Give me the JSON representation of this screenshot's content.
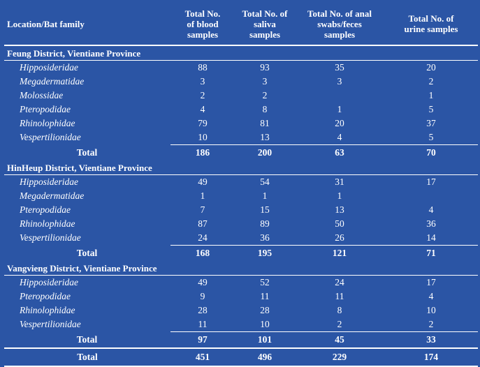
{
  "headers": {
    "location": "Location/Bat family",
    "blood": [
      "Total No.",
      "of blood",
      "samples"
    ],
    "saliva": [
      "Total No. of",
      "saliva",
      "samples"
    ],
    "anal": [
      "Total No. of anal",
      "swabs/feces",
      "samples"
    ],
    "urine": [
      "Total No. of",
      "urine samples"
    ]
  },
  "sections": [
    {
      "title": "Feung District, Vientiane Province",
      "rows": [
        {
          "family": "Hipposideridae",
          "blood": "88",
          "saliva": "93",
          "anal": "35",
          "urine": "20"
        },
        {
          "family": "Megadermatidae",
          "blood": "3",
          "saliva": "3",
          "anal": "3",
          "urine": "2"
        },
        {
          "family": "Molossidae",
          "blood": "2",
          "saliva": "2",
          "anal": "",
          "urine": "1"
        },
        {
          "family": "Pteropodidae",
          "blood": "4",
          "saliva": "8",
          "anal": "1",
          "urine": "5"
        },
        {
          "family": "Rhinolophidae",
          "blood": "79",
          "saliva": "81",
          "anal": "20",
          "urine": "37"
        },
        {
          "family": "Vespertilionidae",
          "blood": "10",
          "saliva": "13",
          "anal": "4",
          "urine": "5"
        }
      ],
      "total": {
        "label": "Total",
        "blood": "186",
        "saliva": "200",
        "anal": "63",
        "urine": "70"
      }
    },
    {
      "title": "HinHeup District, Vientiane Province",
      "rows": [
        {
          "family": "Hipposideridae",
          "blood": "49",
          "saliva": "54",
          "anal": "31",
          "urine": "17"
        },
        {
          "family": "Megadermatidae",
          "blood": "1",
          "saliva": "1",
          "anal": "1",
          "urine": ""
        },
        {
          "family": "Pteropodidae",
          "blood": "7",
          "saliva": "15",
          "anal": "13",
          "urine": "4"
        },
        {
          "family": "Rhinolophidae",
          "blood": "87",
          "saliva": "89",
          "anal": "50",
          "urine": "36"
        },
        {
          "family": "Vespertilionidae",
          "blood": "24",
          "saliva": "36",
          "anal": "26",
          "urine": "14"
        }
      ],
      "total": {
        "label": "Total",
        "blood": "168",
        "saliva": "195",
        "anal": "121",
        "urine": "71"
      }
    },
    {
      "title": "Vangvieng District, Vientiane Province",
      "rows": [
        {
          "family": "Hipposideridae",
          "blood": "49",
          "saliva": "52",
          "anal": "24",
          "urine": "17"
        },
        {
          "family": "Pteropodidae",
          "blood": "9",
          "saliva": "11",
          "anal": "11",
          "urine": "4"
        },
        {
          "family": "Rhinolophidae",
          "blood": "28",
          "saliva": "28",
          "anal": "8",
          "urine": "10"
        },
        {
          "family": "Vespertilionidae",
          "blood": "11",
          "saliva": "10",
          "anal": "2",
          "urine": "2"
        }
      ],
      "total": {
        "label": "Total",
        "blood": "97",
        "saliva": "101",
        "anal": "45",
        "urine": "33"
      }
    }
  ],
  "grand_total": {
    "label": "Total",
    "blood": "451",
    "saliva": "496",
    "anal": "229",
    "urine": "174"
  }
}
